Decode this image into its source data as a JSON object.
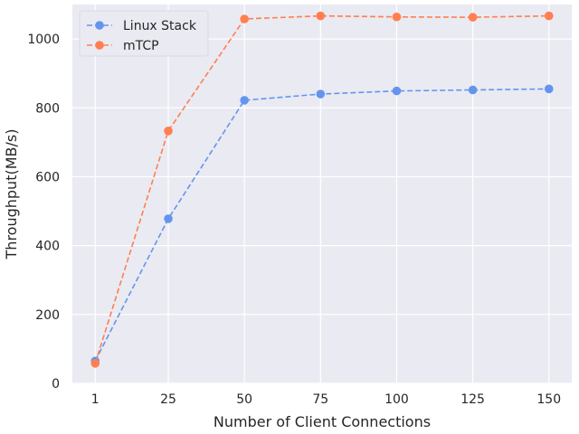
{
  "chart_data": {
    "type": "line",
    "xlabel": "Number of Client Connections",
    "ylabel": "Throughput(MB/s)",
    "x": [
      1,
      25,
      50,
      75,
      100,
      125,
      150
    ],
    "x_ticks": [
      "1",
      "25",
      "50",
      "75",
      "100",
      "125",
      "150"
    ],
    "y_ticks": [
      "0",
      "200",
      "400",
      "600",
      "800",
      "1000"
    ],
    "xlim": [
      -6.5,
      157.5
    ],
    "ylim": [
      0,
      1100
    ],
    "grid": true,
    "legend_position": "top-left",
    "series": [
      {
        "name": "Linux Stack",
        "color": "#6495ED",
        "line_style": "dashed",
        "marker": "circle",
        "values": [
          65,
          478,
          822,
          840,
          849,
          852,
          855
        ]
      },
      {
        "name": "mTCP",
        "color": "#FF7F50",
        "line_style": "dashed",
        "marker": "circle",
        "values": [
          58,
          733,
          1058,
          1067,
          1064,
          1063,
          1067
        ]
      }
    ]
  },
  "style": {
    "plot_background": "#EAEAF2",
    "grid_color": "#FFFFFF"
  }
}
